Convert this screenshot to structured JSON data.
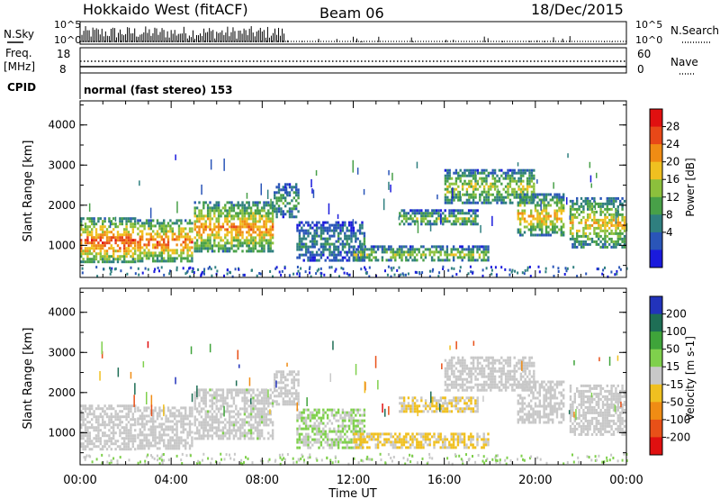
{
  "header": {
    "station": "Hokkaido West (fitACF)",
    "beam": "Beam 06",
    "date": "18/Dec/2015"
  },
  "noise_panel": {
    "left_label": "N.Sky",
    "right_label": "N.Search",
    "top_tick": "10^5",
    "bottom_tick": "10^0"
  },
  "freq_panel": {
    "left_label": "Freq.",
    "left_unit": "[MHz]",
    "left_ticks": [
      "18",
      "8"
    ],
    "right_label": "Nave",
    "right_ticks": [
      "60",
      "0"
    ]
  },
  "cpid_panel": {
    "label": "CPID",
    "mode_text": "normal (fast stereo) 153"
  },
  "x_axis": {
    "label": "Time UT",
    "ticks": [
      "00:00",
      "04:00",
      "08:00",
      "12:00",
      "16:00",
      "20:00",
      "00:00"
    ]
  },
  "colors": {
    "power": [
      "#1a1adc",
      "#2a55b8",
      "#2f7f7f",
      "#48a048",
      "#8cc03c",
      "#f0c020",
      "#f08c14",
      "#e84818",
      "#e01010"
    ],
    "velocity": [
      "#2233bb",
      "#1e6e55",
      "#3fa43a",
      "#7fd04c",
      "#c8c8c8",
      "#f0c020",
      "#f08c14",
      "#e85018",
      "#e01010"
    ]
  },
  "chart_data": [
    {
      "type": "heatmap",
      "name": "power-panel",
      "ylabel": "Slant Range [km]",
      "yticks": [
        "1000",
        "2000",
        "3000",
        "4000"
      ],
      "ylim": [
        200,
        4600
      ],
      "xlim_hours": [
        0,
        24
      ],
      "colorbar": {
        "label": "Power [dB]",
        "ticks": [
          "4",
          "8",
          "12",
          "16",
          "20",
          "24",
          "28"
        ],
        "range": [
          0,
          32
        ]
      },
      "bands": [
        {
          "t0": 0.0,
          "t1": 2.5,
          "r0": 550,
          "r1": 1700,
          "level": 0.72
        },
        {
          "t0": 2.5,
          "t1": 5.0,
          "r0": 600,
          "r1": 1650,
          "level": 0.68
        },
        {
          "t0": 5.0,
          "t1": 8.5,
          "r0": 800,
          "r1": 2100,
          "level": 0.62
        },
        {
          "t0": 8.5,
          "t1": 9.6,
          "r0": 1700,
          "r1": 2550,
          "level": 0.3
        },
        {
          "t0": 9.5,
          "t1": 12.5,
          "r0": 600,
          "r1": 1600,
          "level": 0.22
        },
        {
          "t0": 12.0,
          "t1": 18.0,
          "r0": 600,
          "r1": 1000,
          "level": 0.42
        },
        {
          "t0": 14.0,
          "t1": 17.5,
          "r0": 1500,
          "r1": 1900,
          "level": 0.38
        },
        {
          "t0": 16.0,
          "t1": 20.0,
          "r0": 2000,
          "r1": 2900,
          "level": 0.45
        },
        {
          "t0": 19.2,
          "t1": 21.3,
          "r0": 1200,
          "r1": 2300,
          "level": 0.55
        },
        {
          "t0": 21.5,
          "t1": 24.0,
          "r0": 900,
          "r1": 2200,
          "level": 0.52
        }
      ]
    },
    {
      "type": "heatmap",
      "name": "velocity-panel",
      "ylabel": "Slant Range [km]",
      "yticks": [
        "1000",
        "2000",
        "3000",
        "4000"
      ],
      "ylim": [
        200,
        4600
      ],
      "xlim_hours": [
        0,
        24
      ],
      "colorbar": {
        "label": "Velocity [m s-1]",
        "ticks": [
          "200",
          "100",
          "50",
          "15",
          "-15",
          "-50",
          "-100",
          "-200"
        ],
        "range": [
          -250,
          250
        ]
      },
      "bands": [
        {
          "t0": 0.0,
          "t1": 2.5,
          "r0": 550,
          "r1": 1700,
          "value": 0
        },
        {
          "t0": 2.5,
          "t1": 5.0,
          "r0": 600,
          "r1": 1650,
          "value": 0
        },
        {
          "t0": 5.0,
          "t1": 8.5,
          "r0": 800,
          "r1": 2100,
          "value": 5
        },
        {
          "t0": 8.5,
          "t1": 9.6,
          "r0": 1700,
          "r1": 2550,
          "value": 0
        },
        {
          "t0": 9.5,
          "t1": 12.5,
          "r0": 600,
          "r1": 1600,
          "value": 30
        },
        {
          "t0": 12.0,
          "t1": 18.0,
          "r0": 600,
          "r1": 1000,
          "value": -40
        },
        {
          "t0": 14.0,
          "t1": 17.5,
          "r0": 1500,
          "r1": 1900,
          "value": -30
        },
        {
          "t0": 16.0,
          "t1": 20.0,
          "r0": 2000,
          "r1": 2900,
          "value": 0
        },
        {
          "t0": 19.2,
          "t1": 21.3,
          "r0": 1200,
          "r1": 2300,
          "value": 0
        },
        {
          "t0": 21.5,
          "t1": 24.0,
          "r0": 900,
          "r1": 2200,
          "value": 0
        }
      ]
    }
  ]
}
